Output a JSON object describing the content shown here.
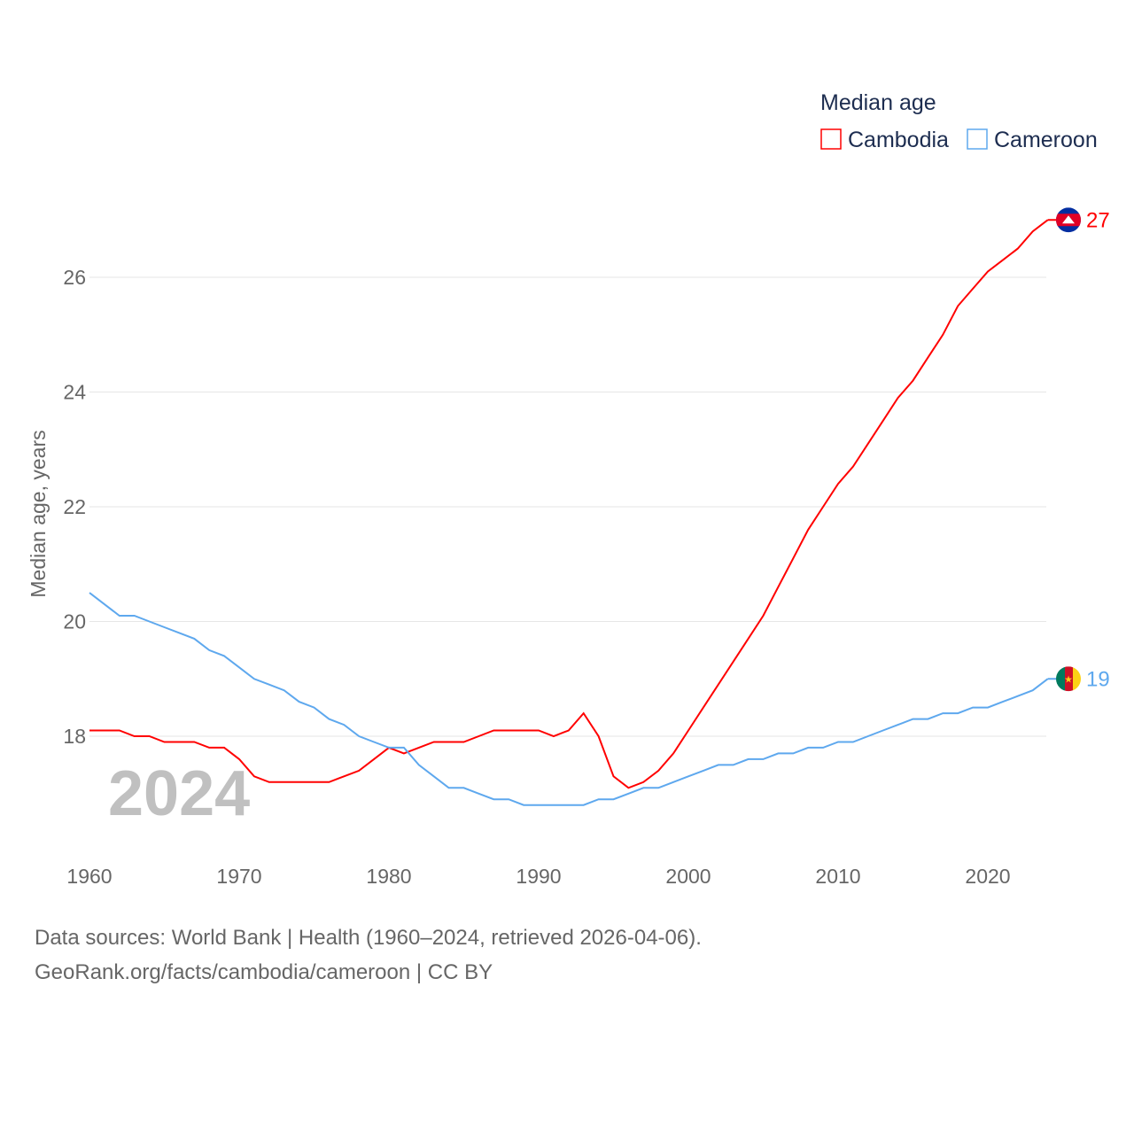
{
  "chart_data": {
    "type": "line",
    "title": "",
    "legend_title": "Median age",
    "legend_placement": "top-right",
    "xlabel": "",
    "ylabel": "Median age, years",
    "xlim": [
      1960,
      2024
    ],
    "ylim": [
      16,
      27
    ],
    "x_ticks": [
      "1960",
      "1970",
      "1980",
      "1990",
      "2000",
      "2010",
      "2020"
    ],
    "y_ticks": [
      "18",
      "20",
      "22",
      "24",
      "26"
    ],
    "year_label": "2024",
    "x": [
      1960,
      1961,
      1962,
      1963,
      1964,
      1965,
      1966,
      1967,
      1968,
      1969,
      1970,
      1971,
      1972,
      1973,
      1974,
      1975,
      1976,
      1977,
      1978,
      1979,
      1980,
      1981,
      1982,
      1983,
      1984,
      1985,
      1986,
      1987,
      1988,
      1989,
      1990,
      1991,
      1992,
      1993,
      1994,
      1995,
      1996,
      1997,
      1998,
      1999,
      2000,
      2001,
      2002,
      2003,
      2004,
      2005,
      2006,
      2007,
      2008,
      2009,
      2010,
      2011,
      2012,
      2013,
      2014,
      2015,
      2016,
      2017,
      2018,
      2019,
      2020,
      2021,
      2022,
      2023,
      2024
    ],
    "series": [
      {
        "name": "Cambodia",
        "color": "#ff0000",
        "end_label": "27",
        "values": [
          18.1,
          18.1,
          18.1,
          18.0,
          18.0,
          17.9,
          17.9,
          17.9,
          17.8,
          17.8,
          17.6,
          17.3,
          17.2,
          17.2,
          17.2,
          17.2,
          17.2,
          17.3,
          17.4,
          17.6,
          17.8,
          17.7,
          17.8,
          17.9,
          17.9,
          17.9,
          18.0,
          18.1,
          18.1,
          18.1,
          18.1,
          18.0,
          18.1,
          18.4,
          18.0,
          17.3,
          17.1,
          17.2,
          17.4,
          17.7,
          18.1,
          18.5,
          18.9,
          19.3,
          19.7,
          20.1,
          20.6,
          21.1,
          21.6,
          22.0,
          22.4,
          22.7,
          23.1,
          23.5,
          23.9,
          24.2,
          24.6,
          25.0,
          25.5,
          25.8,
          26.1,
          26.3,
          26.5,
          26.8,
          27.0
        ]
      },
      {
        "name": "Cameroon",
        "color": "#5ea8ee",
        "end_label": "19",
        "values": [
          20.5,
          20.3,
          20.1,
          20.1,
          20.0,
          19.9,
          19.8,
          19.7,
          19.5,
          19.4,
          19.2,
          19.0,
          18.9,
          18.8,
          18.6,
          18.5,
          18.3,
          18.2,
          18.0,
          17.9,
          17.8,
          17.8,
          17.5,
          17.3,
          17.1,
          17.1,
          17.0,
          16.9,
          16.9,
          16.8,
          16.8,
          16.8,
          16.8,
          16.8,
          16.9,
          16.9,
          17.0,
          17.1,
          17.1,
          17.2,
          17.3,
          17.4,
          17.5,
          17.5,
          17.6,
          17.6,
          17.7,
          17.7,
          17.8,
          17.8,
          17.9,
          17.9,
          18.0,
          18.1,
          18.2,
          18.3,
          18.3,
          18.4,
          18.4,
          18.5,
          18.5,
          18.6,
          18.7,
          18.8,
          19.0
        ]
      }
    ]
  },
  "footer": {
    "line1": "Data sources: World Bank | Health (1960–2024, retrieved 2026-04-06).",
    "line2": "GeoRank.org/facts/cambodia/cameroon | CC BY"
  }
}
